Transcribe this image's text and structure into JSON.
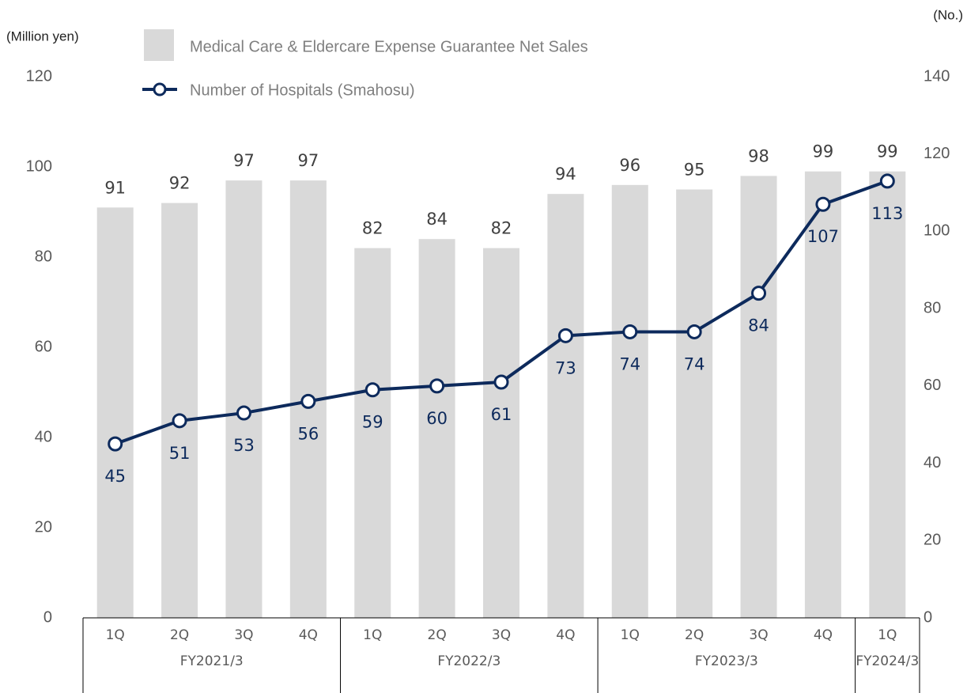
{
  "chart_data": {
    "type": "bar",
    "y_label": "(Million yen)",
    "y2_label": "(No.)",
    "groups": [
      {
        "name": "FY2021/3",
        "categories": [
          "1Q",
          "2Q",
          "3Q",
          "4Q"
        ]
      },
      {
        "name": "FY2022/3",
        "categories": [
          "1Q",
          "2Q",
          "3Q",
          "4Q"
        ]
      },
      {
        "name": "FY2023/3",
        "categories": [
          "1Q",
          "2Q",
          "3Q",
          "4Q"
        ]
      },
      {
        "name": "FY2024/3",
        "categories": [
          "1Q"
        ]
      }
    ],
    "series": [
      {
        "name": "Medical Care & Eldercare Expense Guarantee Net Sales",
        "type": "bar",
        "color": "#d9d9d9",
        "values": [
          91,
          92,
          97,
          97,
          82,
          84,
          82,
          94,
          96,
          95,
          98,
          99,
          99
        ]
      },
      {
        "name": "Number of Hospitals (Smahosu)",
        "type": "line",
        "axis": "y2",
        "color": "#0d2a5c",
        "values": [
          45,
          51,
          53,
          56,
          59,
          60,
          61,
          73,
          74,
          74,
          84,
          107,
          113
        ]
      }
    ],
    "ylim": [
      0,
      120
    ],
    "yticks": [
      0,
      20,
      40,
      60,
      80,
      100,
      120
    ],
    "y2lim": [
      0,
      140
    ],
    "y2ticks": [
      0,
      20,
      40,
      60,
      80,
      100,
      120,
      140
    ],
    "grid": false
  }
}
